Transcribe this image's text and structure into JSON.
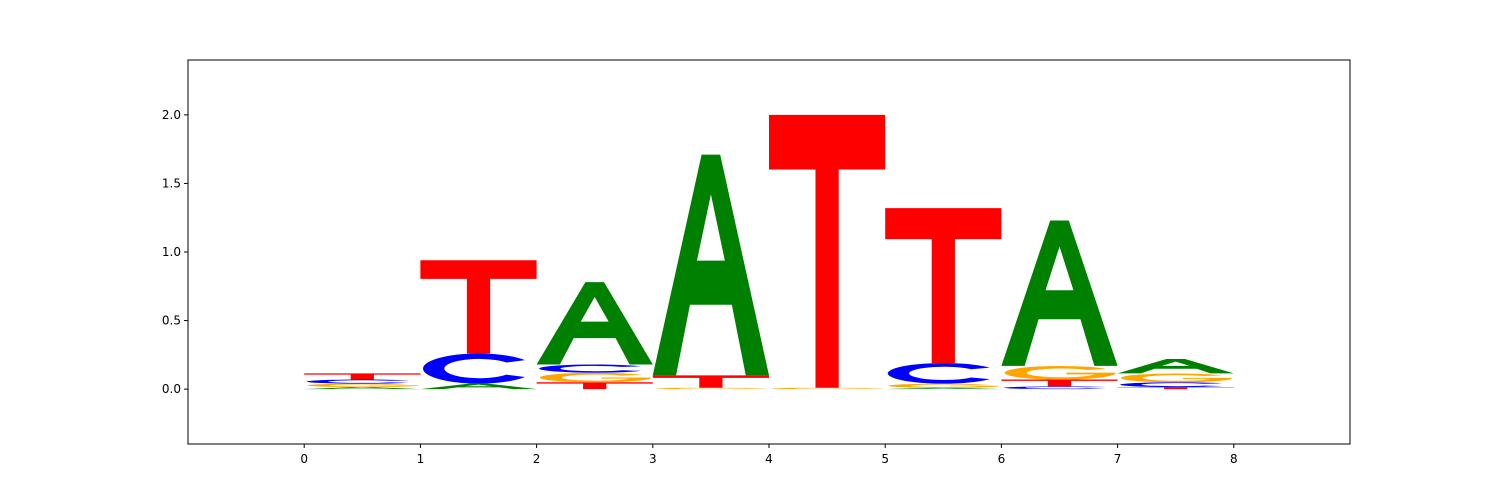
{
  "chart_data": {
    "type": "sequence-logo",
    "title": "",
    "xlabel": "",
    "ylabel": "",
    "xlim": [
      -1,
      9
    ],
    "ylim": [
      -0.4,
      2.4
    ],
    "x_ticks": [
      0,
      1,
      2,
      3,
      4,
      5,
      6,
      7,
      8
    ],
    "y_ticks": [
      0.0,
      0.5,
      1.0,
      1.5,
      2.0
    ],
    "y_tick_labels": [
      "0.0",
      "0.5",
      "1.0",
      "1.5",
      "2.0"
    ],
    "grid": false,
    "colors": {
      "A": "#008000",
      "C": "#0000ff",
      "G": "#ffa500",
      "T": "#ff0000"
    },
    "positions": [
      {
        "x": 0,
        "letters": [
          {
            "letter": "A",
            "height": 0.015
          },
          {
            "letter": "G",
            "height": 0.025
          },
          {
            "letter": "C",
            "height": 0.03
          },
          {
            "letter": "T",
            "height": 0.045
          }
        ]
      },
      {
        "x": 1,
        "letters": [
          {
            "letter": "A",
            "height": 0.04
          },
          {
            "letter": "C",
            "height": 0.22
          },
          {
            "letter": "T",
            "height": 0.68
          }
        ]
      },
      {
        "x": 2,
        "letters": [
          {
            "letter": "T",
            "height": 0.05
          },
          {
            "letter": "G",
            "height": 0.07
          },
          {
            "letter": "C",
            "height": 0.06
          },
          {
            "letter": "A",
            "height": 0.6
          }
        ]
      },
      {
        "x": 3,
        "letters": [
          {
            "letter": "G",
            "height": 0.01
          },
          {
            "letter": "T",
            "height": 0.09
          },
          {
            "letter": "A",
            "height": 1.61
          }
        ]
      },
      {
        "x": 4,
        "letters": [
          {
            "letter": "G",
            "height": 0.01
          },
          {
            "letter": "T",
            "height": 1.99
          }
        ]
      },
      {
        "x": 5,
        "letters": [
          {
            "letter": "A",
            "height": 0.01
          },
          {
            "letter": "G",
            "height": 0.03
          },
          {
            "letter": "C",
            "height": 0.15
          },
          {
            "letter": "T",
            "height": 1.13
          }
        ]
      },
      {
        "x": 6,
        "letters": [
          {
            "letter": "C",
            "height": 0.02
          },
          {
            "letter": "T",
            "height": 0.05
          },
          {
            "letter": "G",
            "height": 0.1
          },
          {
            "letter": "A",
            "height": 1.06
          }
        ]
      },
      {
        "x": 7,
        "letters": [
          {
            "letter": "T",
            "height": 0.015
          },
          {
            "letter": "C",
            "height": 0.035
          },
          {
            "letter": "G",
            "height": 0.065
          },
          {
            "letter": "A",
            "height": 0.105
          }
        ]
      }
    ]
  }
}
